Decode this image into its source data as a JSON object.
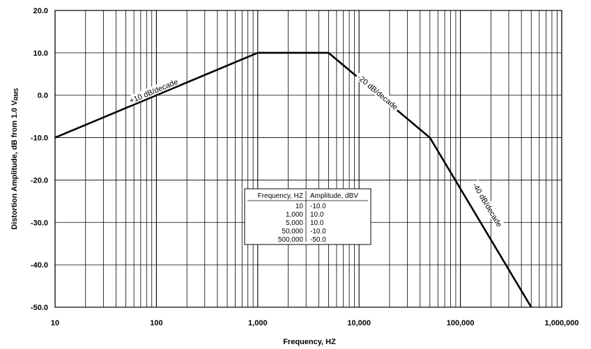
{
  "chart_data": {
    "type": "line",
    "xscale": "log",
    "xlim": [
      10,
      1000000
    ],
    "ylim": [
      -50,
      20
    ],
    "grid": true,
    "xlabel": "Frequency, HZ",
    "ylabel_main": "Distortion Amplitude, dB from 1.0 V",
    "ylabel_sub": "RMS",
    "x_ticks": [
      10,
      100,
      1000,
      10000,
      100000,
      1000000
    ],
    "x_tick_labels": [
      "10",
      "100",
      "1,000",
      "10,000",
      "100,000",
      "1,000,000"
    ],
    "y_ticks": [
      20,
      10,
      0,
      -10,
      -20,
      -30,
      -40,
      -50
    ],
    "y_tick_labels": [
      "20.0",
      "10.0",
      "0.0",
      "-10.0",
      "-20.0",
      "-30.0",
      "-40.0",
      "-50.0"
    ],
    "series": [
      {
        "x": [
          10,
          1000,
          5000,
          50000,
          500000
        ],
        "y": [
          -10,
          10,
          10,
          -10,
          -50
        ]
      }
    ],
    "annotations": [
      {
        "text": "+10 dB/decade",
        "x": 95,
        "y": 0.7
      },
      {
        "text": "-20 dB/decade",
        "x": 15000,
        "y": 0.5
      },
      {
        "text": "-40 dB/decade",
        "x": 180000,
        "y": -26
      }
    ],
    "table": {
      "headers": [
        "Frequency, HZ",
        "Amplitude, dBV"
      ],
      "rows": [
        [
          "10",
          "-10.0"
        ],
        [
          "1,000",
          "10.0"
        ],
        [
          "5,000",
          "10.0"
        ],
        [
          "50,000",
          "-10.0"
        ],
        [
          "500,000",
          "-50.0"
        ]
      ]
    }
  }
}
